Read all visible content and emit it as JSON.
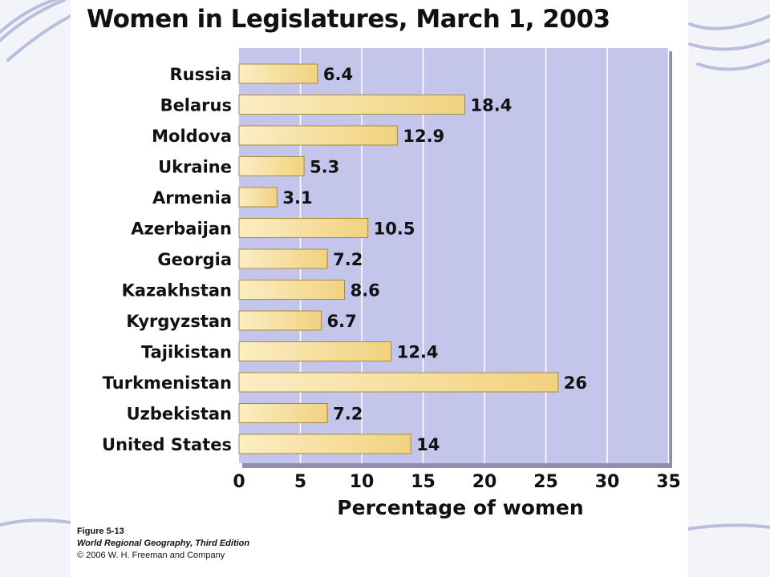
{
  "chart_data": {
    "type": "bar",
    "orientation": "horizontal",
    "title": "Women in Legislatures, March 1, 2003",
    "xlabel": "Percentage of women",
    "ylabel": "",
    "xlim": [
      0,
      35
    ],
    "xticks": [
      0,
      5,
      10,
      15,
      20,
      25,
      30,
      35
    ],
    "categories": [
      "Russia",
      "Belarus",
      "Moldova",
      "Ukraine",
      "Armenia",
      "Azerbaijan",
      "Georgia",
      "Kazakhstan",
      "Kyrgyzstan",
      "Tajikistan",
      "Turkmenistan",
      "Uzbekistan",
      "United States"
    ],
    "values": [
      6.4,
      18.4,
      12.9,
      5.3,
      3.1,
      10.5,
      7.2,
      8.6,
      6.7,
      12.4,
      26,
      7.2,
      14
    ],
    "value_labels": [
      "6.4",
      "18.4",
      "12.9",
      "5.3",
      "3.1",
      "10.5",
      "7.2",
      "8.6",
      "6.7",
      "12.4",
      "26",
      "7.2",
      "14"
    ],
    "grid": true,
    "colors": {
      "plot_bg": "#c3c5ea",
      "bar": "#f1d27f",
      "bar_light": "#fbedc4",
      "bar_edge": "#a88a3a",
      "grid": "#ffffff"
    }
  },
  "credit": {
    "figure": "Figure 5-13",
    "book": "World Regional Geography, Third Edition",
    "copyright": "© 2006 W. H. Freeman and Company"
  }
}
